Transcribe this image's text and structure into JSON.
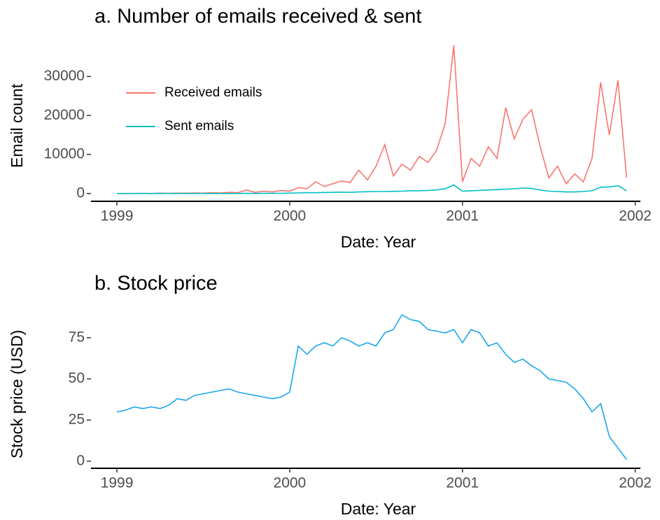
{
  "chart_data": [
    {
      "type": "line",
      "title": "a. Number of emails received & sent",
      "xlabel": "Date: Year",
      "ylabel": "Email count",
      "x": [
        1999.0,
        1999.05,
        1999.1,
        1999.15,
        1999.2,
        1999.25,
        1999.3,
        1999.35,
        1999.4,
        1999.45,
        1999.5,
        1999.55,
        1999.6,
        1999.65,
        1999.7,
        1999.75,
        1999.8,
        1999.85,
        1999.9,
        1999.95,
        2000.0,
        2000.05,
        2000.1,
        2000.15,
        2000.2,
        2000.25,
        2000.3,
        2000.35,
        2000.4,
        2000.45,
        2000.5,
        2000.55,
        2000.6,
        2000.65,
        2000.7,
        2000.75,
        2000.8,
        2000.85,
        2000.9,
        2000.95,
        2001.0,
        2001.05,
        2001.1,
        2001.15,
        2001.2,
        2001.25,
        2001.3,
        2001.35,
        2001.4,
        2001.45,
        2001.5,
        2001.55,
        2001.6,
        2001.65,
        2001.7,
        2001.75,
        2001.8,
        2001.85,
        2001.9,
        2001.95
      ],
      "series": [
        {
          "name": "Received emails",
          "color": "#f8766d",
          "values": [
            0,
            0,
            0,
            50,
            0,
            100,
            50,
            100,
            100,
            150,
            100,
            200,
            150,
            300,
            200,
            900,
            300,
            600,
            400,
            800,
            600,
            1500,
            1200,
            3000,
            1800,
            2500,
            3200,
            2800,
            6000,
            3500,
            7000,
            12500,
            4500,
            7500,
            6000,
            9500,
            8000,
            11000,
            18000,
            38000,
            3000,
            9000,
            7000,
            12000,
            9000,
            22000,
            14000,
            19000,
            21500,
            12000,
            4000,
            7000,
            2500,
            5000,
            3000,
            9000,
            28500,
            15000,
            29000,
            4000
          ]
        },
        {
          "name": "Sent emails",
          "color": "#00bfc4",
          "values": [
            0,
            0,
            0,
            0,
            0,
            0,
            0,
            0,
            0,
            0,
            0,
            0,
            0,
            0,
            0,
            50,
            0,
            50,
            50,
            50,
            100,
            150,
            200,
            200,
            250,
            300,
            350,
            300,
            400,
            450,
            500,
            500,
            550,
            600,
            700,
            700,
            800,
            900,
            1200,
            2200,
            600,
            700,
            800,
            900,
            1000,
            1100,
            1200,
            1400,
            1300,
            900,
            600,
            500,
            400,
            400,
            500,
            700,
            1600,
            1700,
            2000,
            700
          ]
        }
      ],
      "xlim": [
        1998.85,
        2002.03
      ],
      "xticks": [
        1999,
        2000,
        2001,
        2002
      ],
      "ylim": [
        -2000,
        38500
      ],
      "yticks": [
        0,
        10000,
        20000,
        30000
      ],
      "legend": "top-left"
    },
    {
      "type": "line",
      "title": "b. Stock price",
      "xlabel": "Date: Year",
      "ylabel": "Stock price (USD)",
      "x": [
        1999.0,
        1999.05,
        1999.1,
        1999.15,
        1999.2,
        1999.25,
        1999.3,
        1999.35,
        1999.4,
        1999.45,
        1999.5,
        1999.55,
        1999.6,
        1999.65,
        1999.7,
        1999.75,
        1999.8,
        1999.85,
        1999.9,
        1999.95,
        2000.0,
        2000.05,
        2000.1,
        2000.15,
        2000.2,
        2000.25,
        2000.3,
        2000.35,
        2000.4,
        2000.45,
        2000.5,
        2000.55,
        2000.6,
        2000.65,
        2000.7,
        2000.75,
        2000.8,
        2000.85,
        2000.9,
        2000.95,
        2001.0,
        2001.05,
        2001.1,
        2001.15,
        2001.2,
        2001.25,
        2001.3,
        2001.35,
        2001.4,
        2001.45,
        2001.5,
        2001.55,
        2001.6,
        2001.65,
        2001.7,
        2001.75,
        2001.8,
        2001.85,
        2001.9,
        2001.95
      ],
      "series": [
        {
          "name": null,
          "color": "#1aa7ec",
          "values": [
            30,
            31,
            33,
            32,
            33,
            32,
            34,
            38,
            37,
            40,
            41,
            42,
            43,
            44,
            42,
            41,
            40,
            39,
            38,
            39,
            42,
            70,
            65,
            70,
            72,
            70,
            75,
            73,
            70,
            72,
            70,
            78,
            80,
            89,
            86,
            85,
            80,
            79,
            78,
            80,
            72,
            80,
            78,
            70,
            72,
            65,
            60,
            62,
            58,
            55,
            50,
            49,
            48,
            44,
            38,
            30,
            35,
            15,
            8,
            1
          ]
        }
      ],
      "xlim": [
        1998.85,
        2002.03
      ],
      "xticks": [
        1999,
        2000,
        2001,
        2002
      ],
      "ylim": [
        -4.3,
        90
      ],
      "yticks": [
        0,
        25,
        50,
        75
      ]
    }
  ]
}
